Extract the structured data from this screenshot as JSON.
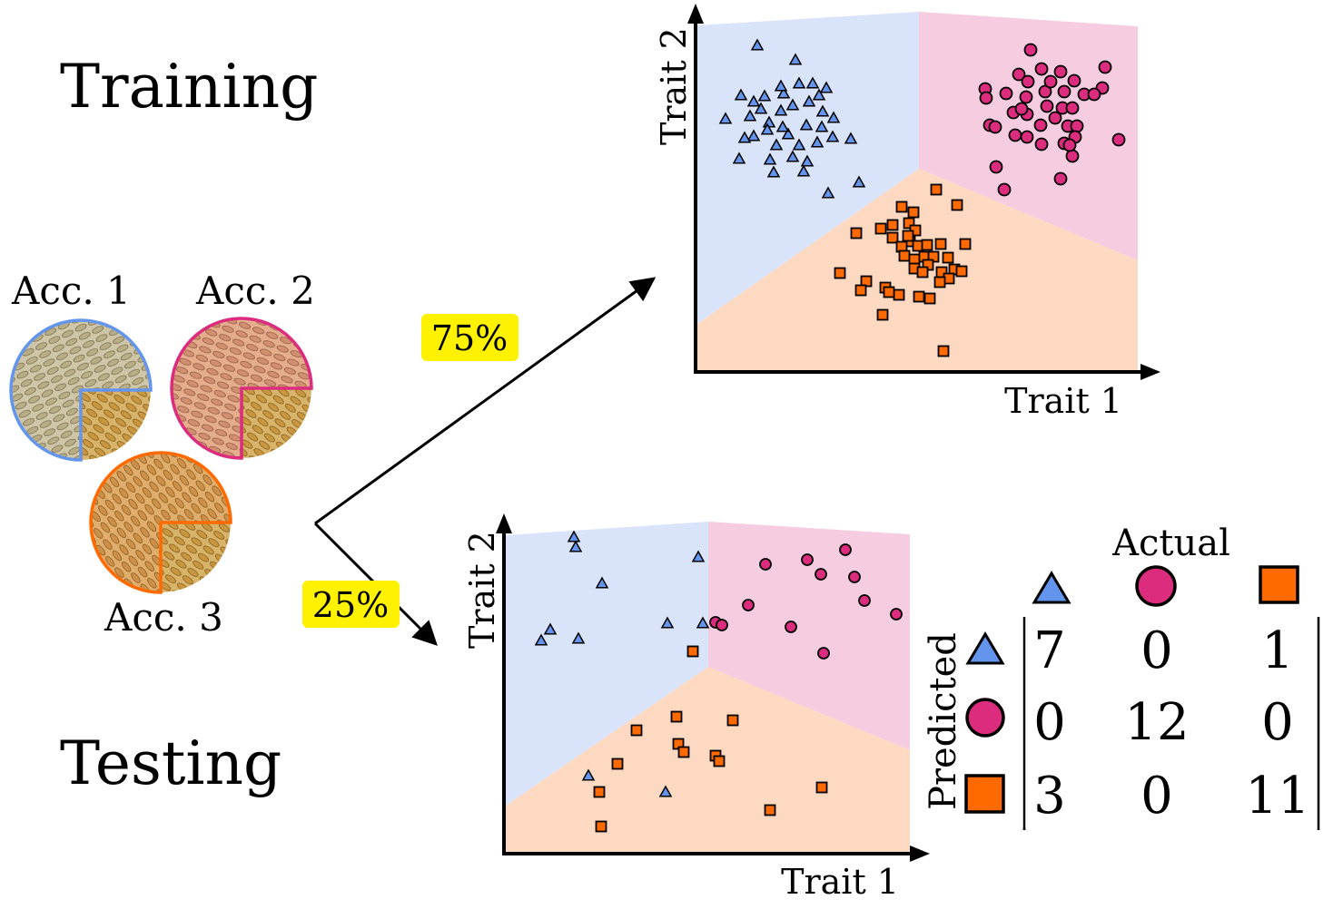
{
  "training_title": "Training",
  "testing_title": "Testing",
  "accessions": {
    "acc1": "Acc. 1",
    "acc2": "Acc. 2",
    "acc3": "Acc. 3"
  },
  "split": {
    "train_pct": "75%",
    "test_pct": "25%"
  },
  "colors": {
    "class1": "#6495ED",
    "class2": "#DB2C7E",
    "class3": "#FF6A00",
    "region1": "#D9E3FA",
    "region2": "#F5CCE0",
    "region3": "#FDD9C2",
    "highlight": "#FFF200"
  },
  "train_plot": {
    "xlabel": "Trait 1",
    "ylabel": "Trait 2"
  },
  "test_plot": {
    "xlabel": "Trait 1",
    "ylabel": "Trait 2"
  },
  "confusion": {
    "actual_label": "Actual",
    "predicted_label": "Predicted",
    "rows": [
      {
        "values": [
          "7",
          "0",
          "1"
        ]
      },
      {
        "values": [
          "0",
          "12",
          "0"
        ]
      },
      {
        "values": [
          "3",
          "0",
          "11"
        ]
      }
    ]
  }
}
